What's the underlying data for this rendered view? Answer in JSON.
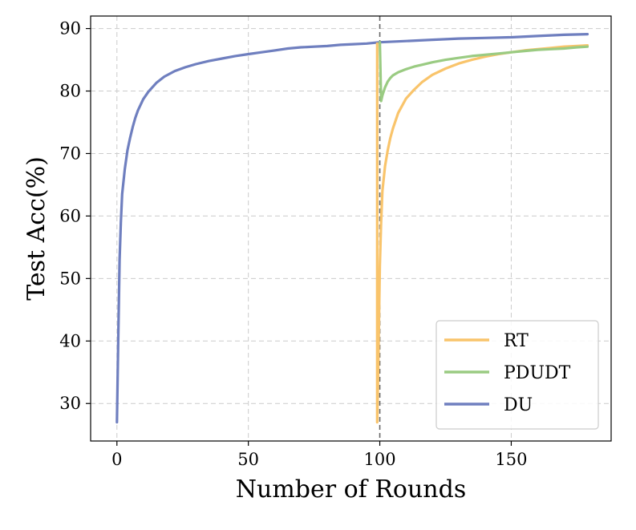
{
  "chart_data": {
    "type": "line",
    "title": "",
    "xlabel": "Number of Rounds",
    "ylabel": "Test Acc(%)",
    "xlim": [
      -10,
      188
    ],
    "ylim": [
      24,
      92
    ],
    "xticks": [
      0,
      50,
      100,
      150
    ],
    "yticks": [
      30,
      40,
      50,
      60,
      70,
      80,
      90
    ],
    "grid": true,
    "legend_position": "lower-right",
    "vertical_line": {
      "x": 100,
      "style": "dashed",
      "color": "#666666"
    },
    "series": [
      {
        "name": "RT",
        "color": "#f9c46b",
        "x": [
          99,
          99,
          99.5,
          100,
          100.5,
          101,
          102,
          103,
          104,
          105,
          107,
          110,
          113,
          116,
          120,
          125,
          130,
          135,
          140,
          145,
          150,
          155,
          160,
          165,
          170,
          175,
          179
        ],
        "y": [
          87.6,
          27,
          38,
          52,
          59,
          64,
          68,
          70.5,
          72.5,
          74,
          76.5,
          78.8,
          80.2,
          81.4,
          82.6,
          83.6,
          84.4,
          85,
          85.5,
          85.9,
          86.2,
          86.5,
          86.7,
          86.9,
          87.1,
          87.2,
          87.3
        ]
      },
      {
        "name": "PDUDT",
        "color": "#9acb82",
        "x": [
          100,
          100.5,
          101,
          102,
          103,
          104,
          105,
          107,
          110,
          113,
          116,
          120,
          125,
          130,
          135,
          140,
          145,
          150,
          155,
          160,
          165,
          170,
          175,
          179
        ],
        "y": [
          87.8,
          78.4,
          79.3,
          80.6,
          81.5,
          82.1,
          82.5,
          83,
          83.5,
          83.9,
          84.2,
          84.6,
          85,
          85.3,
          85.6,
          85.8,
          86,
          86.2,
          86.4,
          86.6,
          86.7,
          86.8,
          87,
          87.1
        ]
      },
      {
        "name": "DU",
        "color": "#6f7fbf",
        "x": [
          0,
          0.5,
          1,
          1.5,
          2,
          3,
          4,
          5,
          6,
          7,
          8,
          10,
          12,
          15,
          18,
          22,
          26,
          30,
          35,
          40,
          45,
          50,
          55,
          60,
          65,
          70,
          75,
          80,
          85,
          90,
          95,
          100,
          110,
          120,
          130,
          140,
          150,
          160,
          170,
          179
        ],
        "y": [
          27,
          40,
          53,
          59,
          63.5,
          67.5,
          70.5,
          72.5,
          74.2,
          75.7,
          76.9,
          78.7,
          79.9,
          81.3,
          82.3,
          83.2,
          83.8,
          84.3,
          84.8,
          85.2,
          85.6,
          85.9,
          86.2,
          86.5,
          86.8,
          87,
          87.1,
          87.2,
          87.4,
          87.5,
          87.6,
          87.8,
          88,
          88.2,
          88.4,
          88.5,
          88.6,
          88.8,
          89,
          89.1
        ]
      }
    ]
  }
}
